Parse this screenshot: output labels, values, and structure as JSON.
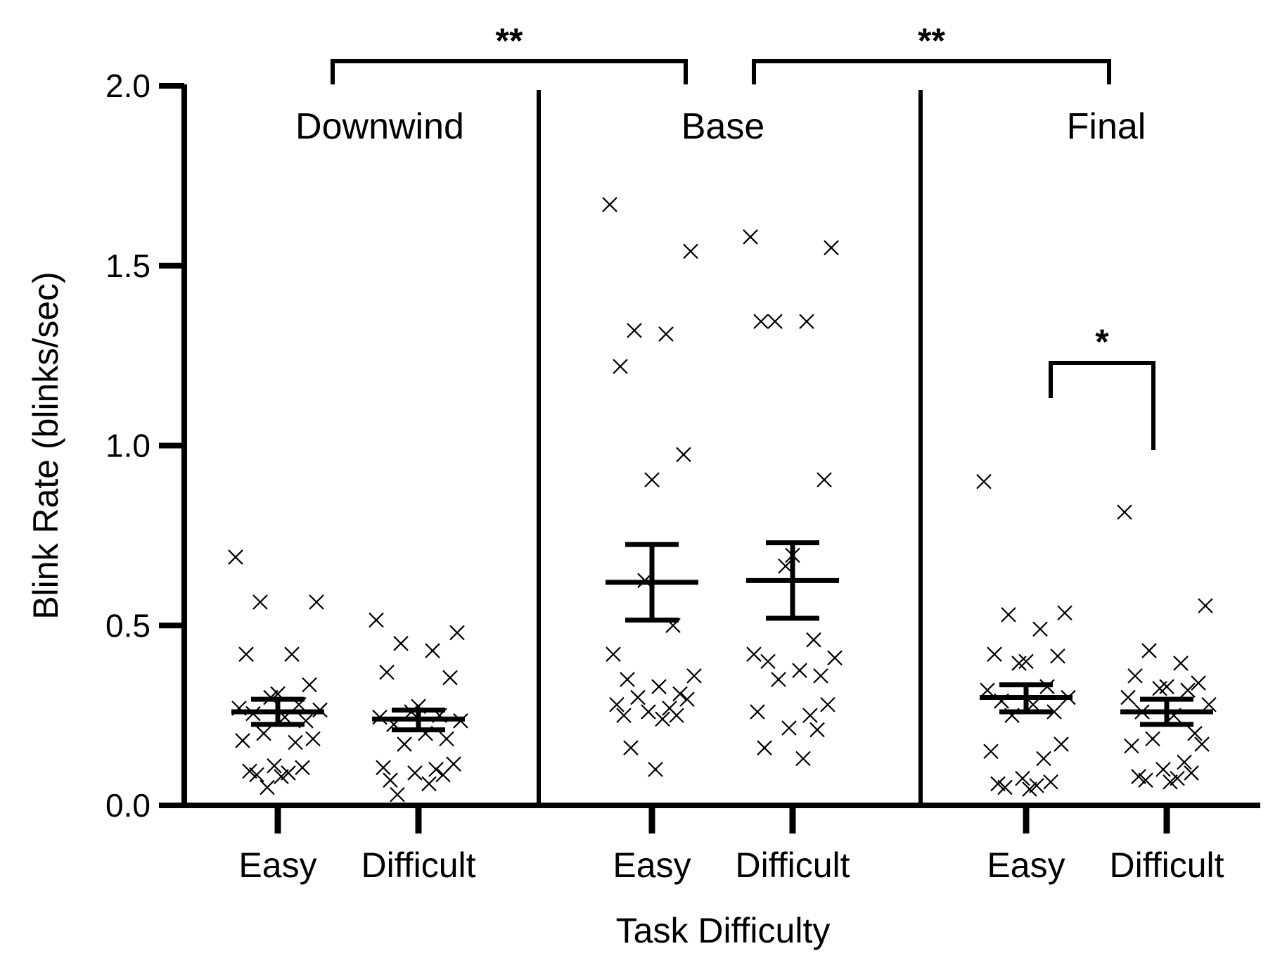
{
  "chart_data": {
    "type": "scatter",
    "title": "",
    "xlabel": "Task Difficulty",
    "ylabel": "Blink Rate (blinks/sec)",
    "ylim": [
      0,
      2.0
    ],
    "yticks": [
      "0.0",
      "0.5",
      "1.0",
      "1.5",
      "2.0"
    ],
    "grid": false,
    "legend": "none",
    "marker": "x",
    "color": "#000000",
    "panels": [
      {
        "name": "Downwind",
        "categories": [
          {
            "label": "Easy",
            "mean": 0.26,
            "sem_low": 0.225,
            "sem_high": 0.295,
            "points": [
              0.69,
              0.565,
              0.565,
              0.42,
              0.42,
              0.335,
              0.31,
              0.3,
              0.28,
              0.27,
              0.265,
              0.255,
              0.245,
              0.235,
              0.2,
              0.185,
              0.18,
              0.175,
              0.11,
              0.105,
              0.095,
              0.09,
              0.085,
              0.08,
              0.05
            ]
          },
          {
            "label": "Difficult",
            "mean": 0.24,
            "sem_low": 0.21,
            "sem_high": 0.265,
            "points": [
              0.515,
              0.48,
              0.45,
              0.43,
              0.37,
              0.355,
              0.275,
              0.26,
              0.25,
              0.245,
              0.235,
              0.225,
              0.2,
              0.185,
              0.17,
              0.115,
              0.105,
              0.1,
              0.09,
              0.085,
              0.07,
              0.06,
              0.03
            ]
          }
        ]
      },
      {
        "name": "Base",
        "categories": [
          {
            "label": "Easy",
            "mean": 0.62,
            "sem_low": 0.515,
            "sem_high": 0.725,
            "points": [
              1.67,
              1.54,
              1.32,
              1.31,
              1.22,
              0.975,
              0.905,
              0.625,
              0.5,
              0.42,
              0.36,
              0.35,
              0.33,
              0.31,
              0.3,
              0.295,
              0.28,
              0.27,
              0.26,
              0.25,
              0.25,
              0.24,
              0.16,
              0.1
            ]
          },
          {
            "label": "Difficult",
            "mean": 0.625,
            "sem_low": 0.52,
            "sem_high": 0.73,
            "points": [
              1.58,
              1.55,
              1.345,
              1.345,
              1.345,
              0.905,
              0.695,
              0.665,
              0.46,
              0.42,
              0.41,
              0.4,
              0.375,
              0.36,
              0.35,
              0.28,
              0.26,
              0.25,
              0.215,
              0.21,
              0.16,
              0.13
            ]
          }
        ]
      },
      {
        "name": "Final",
        "categories": [
          {
            "label": "Easy",
            "mean": 0.3,
            "sem_low": 0.26,
            "sem_high": 0.335,
            "points": [
              0.9,
              0.535,
              0.53,
              0.49,
              0.42,
              0.415,
              0.4,
              0.395,
              0.33,
              0.32,
              0.3,
              0.29,
              0.28,
              0.26,
              0.25,
              0.17,
              0.15,
              0.13,
              0.075,
              0.065,
              0.06,
              0.055,
              0.05,
              0.045
            ]
          },
          {
            "label": "Difficult",
            "mean": 0.26,
            "sem_low": 0.225,
            "sem_high": 0.295,
            "points": [
              0.815,
              0.555,
              0.43,
              0.395,
              0.36,
              0.34,
              0.33,
              0.325,
              0.32,
              0.3,
              0.28,
              0.26,
              0.25,
              0.2,
              0.185,
              0.17,
              0.165,
              0.12,
              0.1,
              0.09,
              0.08,
              0.075,
              0.07,
              0.065
            ]
          }
        ]
      }
    ],
    "significance": [
      {
        "label": "**",
        "between": "Downwind Difficult – Base Easy"
      },
      {
        "label": "**",
        "between": "Base Difficult – Final Easy"
      },
      {
        "label": "*",
        "between": "Final Easy – Final Difficult"
      }
    ]
  }
}
